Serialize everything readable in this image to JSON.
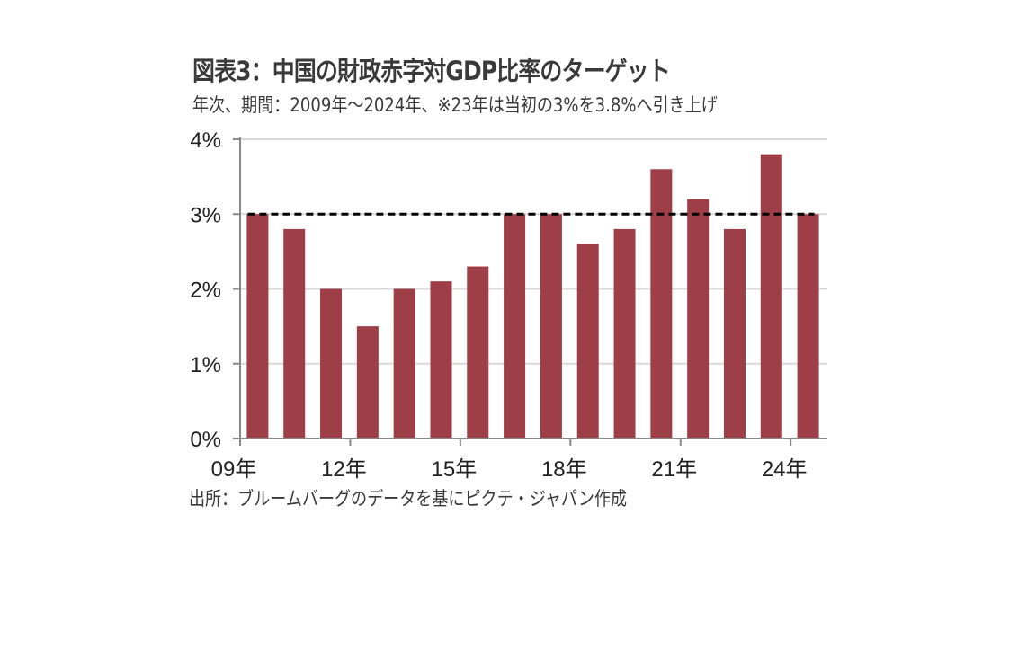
{
  "header": {
    "title": "図表3：中国の財政赤字対GDP比率のターゲット",
    "subtitle": "年次、期間：2009年～2024年、※23年は当初の3%を3.8%へ引き上げ"
  },
  "footer": {
    "source": "出所：ブルームバーグのデータを基にピクテ・ジャパン作成"
  },
  "colors": {
    "bar": "#9e3f47",
    "grid": "#d9d9d9",
    "axis": "#888888",
    "target_line": "#000000"
  },
  "chart_data": {
    "type": "bar",
    "title": "図表3：中国の財政赤字対GDP比率のターゲット",
    "subtitle": "年次、期間：2009年～2024年、※23年は当初の3%を3.8%へ引き上げ",
    "xlabel": "",
    "ylabel": "",
    "categories": [
      "2009",
      "2010",
      "2011",
      "2012",
      "2013",
      "2014",
      "2015",
      "2016",
      "2017",
      "2018",
      "2019",
      "2020",
      "2021",
      "2022",
      "2023",
      "2024"
    ],
    "series": [
      {
        "name": "財政赤字対GDP比率ターゲット",
        "values": [
          3.0,
          2.8,
          2.0,
          1.5,
          2.0,
          2.1,
          2.3,
          3.0,
          3.0,
          2.6,
          2.8,
          3.6,
          3.2,
          2.8,
          3.8,
          3.0
        ]
      }
    ],
    "reference_line": {
      "name": "3%",
      "value": 3.0,
      "style": "dashed"
    },
    "ylim": [
      0,
      4
    ],
    "yticks": [
      0,
      1,
      2,
      3,
      4
    ],
    "ytick_labels": [
      "0%",
      "1%",
      "2%",
      "3%",
      "4%"
    ],
    "xtick_labels": [
      "09年",
      "12年",
      "15年",
      "18年",
      "21年",
      "24年"
    ],
    "grid": true,
    "legend": "none"
  }
}
